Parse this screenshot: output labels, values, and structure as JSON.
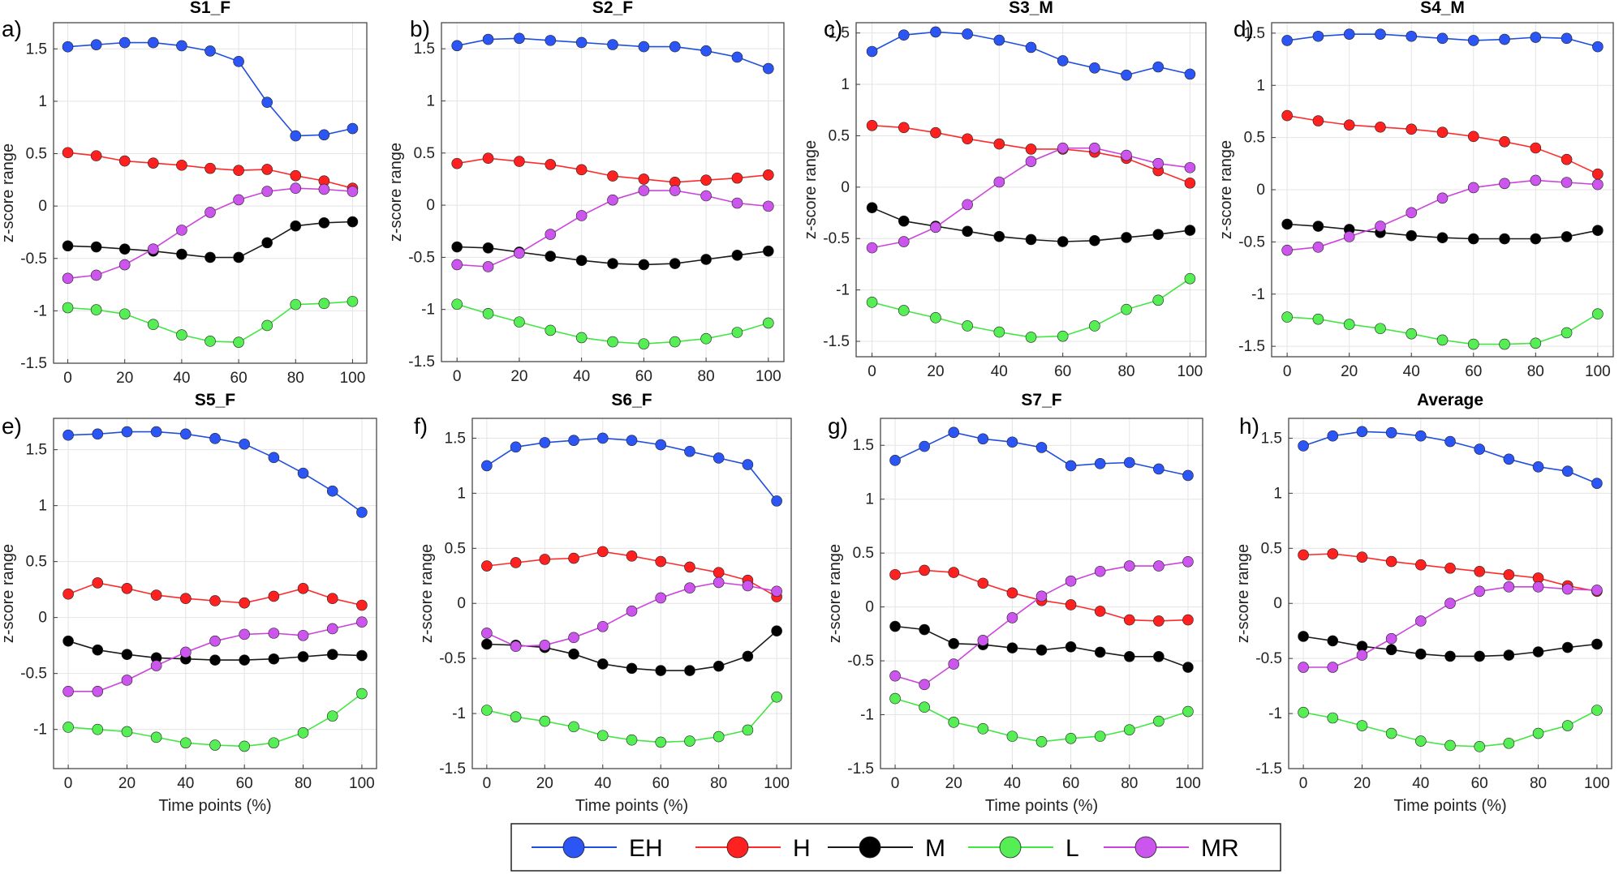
{
  "figure": {
    "legend": [
      {
        "key": "EH",
        "label": "EH",
        "color": "#1f4fe0",
        "marker": "#2b55f5"
      },
      {
        "key": "H",
        "label": "H",
        "color": "#ff2b2b",
        "marker": "#ff2020"
      },
      {
        "key": "M",
        "label": "M",
        "color": "#1a1a1a",
        "marker": "#000000"
      },
      {
        "key": "L",
        "label": "L",
        "color": "#44e644",
        "marker": "#55ee55"
      },
      {
        "key": "MR",
        "label": "MR",
        "color": "#cc44dd",
        "marker": "#cc55ee"
      }
    ]
  },
  "chart_data": [
    {
      "type": "line",
      "letter": "a)",
      "title": "S1_F",
      "xlabel": "",
      "ylabel": "z-score range",
      "x": [
        0,
        10,
        20,
        30,
        40,
        50,
        60,
        70,
        80,
        90,
        100
      ],
      "xlim": [
        -5,
        105
      ],
      "ylim": [
        -1.5,
        1.75
      ],
      "xticks": [
        "0",
        "20",
        "40",
        "60",
        "80",
        "100"
      ],
      "yticks": [
        "-1.5",
        "-1",
        "-0.5",
        "0",
        "0.5",
        "1",
        "1.5"
      ],
      "series": [
        {
          "name": "EH",
          "values": [
            1.52,
            1.54,
            1.56,
            1.56,
            1.53,
            1.48,
            1.38,
            0.99,
            0.67,
            0.68,
            0.74
          ]
        },
        {
          "name": "H",
          "values": [
            0.51,
            0.48,
            0.43,
            0.41,
            0.39,
            0.36,
            0.34,
            0.35,
            0.29,
            0.24,
            0.17
          ]
        },
        {
          "name": "M",
          "values": [
            -0.38,
            -0.39,
            -0.41,
            -0.43,
            -0.46,
            -0.49,
            -0.49,
            -0.35,
            -0.19,
            -0.16,
            -0.15
          ]
        },
        {
          "name": "L",
          "values": [
            -0.97,
            -0.99,
            -1.03,
            -1.13,
            -1.23,
            -1.29,
            -1.3,
            -1.14,
            -0.94,
            -0.93,
            -0.91
          ]
        },
        {
          "name": "MR",
          "values": [
            -0.69,
            -0.66,
            -0.56,
            -0.41,
            -0.23,
            -0.06,
            0.06,
            0.14,
            0.17,
            0.16,
            0.14
          ]
        }
      ]
    },
    {
      "type": "line",
      "letter": "b)",
      "title": "S2_F",
      "xlabel": "",
      "ylabel": "z-score range",
      "x": [
        0,
        10,
        20,
        30,
        40,
        50,
        60,
        70,
        80,
        90,
        100
      ],
      "xlim": [
        -5,
        105
      ],
      "ylim": [
        -1.5,
        1.75
      ],
      "xticks": [
        "0",
        "20",
        "40",
        "60",
        "80",
        "100"
      ],
      "yticks": [
        "-1.5",
        "-1",
        "-0.5",
        "0",
        "0.5",
        "1",
        "1.5"
      ],
      "series": [
        {
          "name": "EH",
          "values": [
            1.53,
            1.59,
            1.6,
            1.58,
            1.56,
            1.54,
            1.52,
            1.52,
            1.48,
            1.42,
            1.31
          ]
        },
        {
          "name": "H",
          "values": [
            0.4,
            0.45,
            0.42,
            0.39,
            0.34,
            0.28,
            0.25,
            0.22,
            0.24,
            0.26,
            0.29
          ]
        },
        {
          "name": "M",
          "values": [
            -0.4,
            -0.41,
            -0.45,
            -0.49,
            -0.53,
            -0.56,
            -0.57,
            -0.56,
            -0.52,
            -0.48,
            -0.44
          ]
        },
        {
          "name": "L",
          "values": [
            -0.95,
            -1.04,
            -1.12,
            -1.2,
            -1.27,
            -1.31,
            -1.33,
            -1.31,
            -1.28,
            -1.22,
            -1.13
          ]
        },
        {
          "name": "MR",
          "values": [
            -0.57,
            -0.59,
            -0.46,
            -0.28,
            -0.1,
            0.05,
            0.14,
            0.14,
            0.09,
            0.02,
            -0.01
          ]
        }
      ]
    },
    {
      "type": "line",
      "letter": "c)",
      "title": "S3_M",
      "xlabel": "",
      "ylabel": "z-score range",
      "x": [
        0,
        10,
        20,
        30,
        40,
        50,
        60,
        70,
        80,
        90,
        100
      ],
      "xlim": [
        -5,
        105
      ],
      "ylim": [
        -1.65,
        1.6
      ],
      "xticks": [
        "0",
        "20",
        "40",
        "60",
        "80",
        "100"
      ],
      "yticks": [
        "-1.5",
        "-1",
        "-0.5",
        "0",
        "0.5",
        "1",
        "1.5"
      ],
      "series": [
        {
          "name": "EH",
          "values": [
            1.32,
            1.48,
            1.51,
            1.49,
            1.43,
            1.36,
            1.23,
            1.16,
            1.09,
            1.17,
            1.1
          ]
        },
        {
          "name": "H",
          "values": [
            0.6,
            0.58,
            0.53,
            0.47,
            0.42,
            0.37,
            0.37,
            0.34,
            0.28,
            0.16,
            0.04
          ]
        },
        {
          "name": "M",
          "values": [
            -0.2,
            -0.33,
            -0.38,
            -0.43,
            -0.48,
            -0.51,
            -0.53,
            -0.52,
            -0.49,
            -0.46,
            -0.42
          ]
        },
        {
          "name": "L",
          "values": [
            -1.12,
            -1.2,
            -1.27,
            -1.35,
            -1.41,
            -1.46,
            -1.45,
            -1.35,
            -1.19,
            -1.1,
            -0.89
          ]
        },
        {
          "name": "MR",
          "values": [
            -0.59,
            -0.53,
            -0.39,
            -0.17,
            0.05,
            0.25,
            0.38,
            0.38,
            0.31,
            0.23,
            0.19
          ]
        }
      ]
    },
    {
      "type": "line",
      "letter": "d)",
      "title": "S4_M",
      "xlabel": "",
      "ylabel": "z-score range",
      "x": [
        0,
        10,
        20,
        30,
        40,
        50,
        60,
        70,
        80,
        90,
        100
      ],
      "xlim": [
        -5,
        105
      ],
      "ylim": [
        -1.6,
        1.6
      ],
      "xticks": [
        "0",
        "20",
        "40",
        "60",
        "80",
        "100"
      ],
      "yticks": [
        "-1.5",
        "-1",
        "-0.5",
        "0",
        "0.5",
        "1",
        "1.5"
      ],
      "series": [
        {
          "name": "EH",
          "values": [
            1.43,
            1.47,
            1.49,
            1.49,
            1.47,
            1.45,
            1.43,
            1.44,
            1.46,
            1.45,
            1.37
          ]
        },
        {
          "name": "H",
          "values": [
            0.71,
            0.66,
            0.62,
            0.6,
            0.58,
            0.55,
            0.51,
            0.46,
            0.4,
            0.29,
            0.15
          ]
        },
        {
          "name": "M",
          "values": [
            -0.33,
            -0.35,
            -0.38,
            -0.41,
            -0.44,
            -0.46,
            -0.47,
            -0.47,
            -0.47,
            -0.45,
            -0.39
          ]
        },
        {
          "name": "L",
          "values": [
            -1.22,
            -1.24,
            -1.29,
            -1.33,
            -1.38,
            -1.44,
            -1.48,
            -1.48,
            -1.47,
            -1.37,
            -1.19
          ]
        },
        {
          "name": "MR",
          "values": [
            -0.58,
            -0.55,
            -0.45,
            -0.35,
            -0.22,
            -0.08,
            0.02,
            0.06,
            0.09,
            0.07,
            0.05
          ]
        }
      ]
    },
    {
      "type": "line",
      "letter": "e)",
      "title": "S5_F",
      "xlabel": "Time points (%)",
      "ylabel": "z-score range",
      "x": [
        0,
        10,
        20,
        30,
        40,
        50,
        60,
        70,
        80,
        90,
        100
      ],
      "xlim": [
        -5,
        105
      ],
      "ylim": [
        -1.35,
        1.78
      ],
      "xticks": [
        "0",
        "20",
        "40",
        "60",
        "80",
        "100"
      ],
      "yticks": [
        "-1",
        "-0.5",
        "0",
        "0.5",
        "1",
        "1.5"
      ],
      "series": [
        {
          "name": "EH",
          "values": [
            1.63,
            1.64,
            1.66,
            1.66,
            1.64,
            1.6,
            1.55,
            1.43,
            1.29,
            1.13,
            0.94
          ]
        },
        {
          "name": "H",
          "values": [
            0.21,
            0.31,
            0.26,
            0.2,
            0.17,
            0.15,
            0.13,
            0.19,
            0.26,
            0.17,
            0.11
          ]
        },
        {
          "name": "M",
          "values": [
            -0.21,
            -0.29,
            -0.33,
            -0.36,
            -0.37,
            -0.38,
            -0.38,
            -0.37,
            -0.35,
            -0.33,
            -0.34
          ]
        },
        {
          "name": "L",
          "values": [
            -0.98,
            -1.0,
            -1.02,
            -1.07,
            -1.12,
            -1.14,
            -1.15,
            -1.12,
            -1.03,
            -0.88,
            -0.68
          ]
        },
        {
          "name": "MR",
          "values": [
            -0.66,
            -0.66,
            -0.56,
            -0.43,
            -0.31,
            -0.21,
            -0.15,
            -0.14,
            -0.16,
            -0.1,
            -0.04
          ]
        }
      ]
    },
    {
      "type": "line",
      "letter": "f)",
      "title": "S6_F",
      "xlabel": "Time points (%)",
      "ylabel": "z-score range",
      "x": [
        0,
        10,
        20,
        30,
        40,
        50,
        60,
        70,
        80,
        90,
        100
      ],
      "xlim": [
        -5,
        105
      ],
      "ylim": [
        -1.5,
        1.68
      ],
      "xticks": [
        "0",
        "20",
        "40",
        "60",
        "80",
        "100"
      ],
      "yticks": [
        "-1.5",
        "-1",
        "-0.5",
        "0",
        "0.5",
        "1",
        "1.5"
      ],
      "series": [
        {
          "name": "EH",
          "values": [
            1.25,
            1.42,
            1.46,
            1.48,
            1.5,
            1.48,
            1.44,
            1.38,
            1.32,
            1.26,
            0.93
          ]
        },
        {
          "name": "H",
          "values": [
            0.34,
            0.37,
            0.4,
            0.41,
            0.47,
            0.43,
            0.38,
            0.33,
            0.28,
            0.21,
            0.06
          ]
        },
        {
          "name": "M",
          "values": [
            -0.37,
            -0.38,
            -0.4,
            -0.46,
            -0.55,
            -0.59,
            -0.61,
            -0.61,
            -0.57,
            -0.48,
            -0.25
          ]
        },
        {
          "name": "L",
          "values": [
            -0.97,
            -1.03,
            -1.07,
            -1.12,
            -1.2,
            -1.24,
            -1.26,
            -1.25,
            -1.21,
            -1.15,
            -0.85
          ]
        },
        {
          "name": "MR",
          "values": [
            -0.27,
            -0.39,
            -0.38,
            -0.31,
            -0.21,
            -0.07,
            0.05,
            0.14,
            0.19,
            0.16,
            0.11
          ]
        }
      ]
    },
    {
      "type": "line",
      "letter": "g)",
      "title": "S7_F",
      "xlabel": "Time points (%)",
      "ylabel": "z-score range",
      "x": [
        0,
        10,
        20,
        30,
        40,
        50,
        60,
        70,
        80,
        90,
        100
      ],
      "xlim": [
        -5,
        105
      ],
      "ylim": [
        -1.5,
        1.75
      ],
      "xticks": [
        "0",
        "20",
        "40",
        "60",
        "80",
        "100"
      ],
      "yticks": [
        "-1.5",
        "-1",
        "-0.5",
        "0",
        "0.5",
        "1",
        "1.5"
      ],
      "series": [
        {
          "name": "EH",
          "values": [
            1.36,
            1.49,
            1.62,
            1.56,
            1.53,
            1.48,
            1.31,
            1.33,
            1.34,
            1.28,
            1.22
          ]
        },
        {
          "name": "H",
          "values": [
            0.3,
            0.34,
            0.32,
            0.22,
            0.13,
            0.06,
            0.02,
            -0.04,
            -0.12,
            -0.13,
            -0.12
          ]
        },
        {
          "name": "M",
          "values": [
            -0.18,
            -0.21,
            -0.34,
            -0.35,
            -0.38,
            -0.4,
            -0.37,
            -0.42,
            -0.46,
            -0.46,
            -0.56
          ]
        },
        {
          "name": "L",
          "values": [
            -0.85,
            -0.93,
            -1.07,
            -1.13,
            -1.2,
            -1.25,
            -1.22,
            -1.2,
            -1.14,
            -1.06,
            -0.97
          ]
        },
        {
          "name": "MR",
          "values": [
            -0.64,
            -0.72,
            -0.53,
            -0.31,
            -0.1,
            0.1,
            0.24,
            0.33,
            0.38,
            0.38,
            0.42
          ]
        }
      ]
    },
    {
      "type": "line",
      "letter": "h)",
      "title": "Average",
      "xlabel": "Time points (%)",
      "ylabel": "z-score range",
      "x": [
        0,
        10,
        20,
        30,
        40,
        50,
        60,
        70,
        80,
        90,
        100
      ],
      "xlim": [
        -5,
        105
      ],
      "ylim": [
        -1.5,
        1.68
      ],
      "xticks": [
        "0",
        "20",
        "40",
        "60",
        "80",
        "100"
      ],
      "yticks": [
        "-1.5",
        "-1",
        "-0.5",
        "0",
        "0.5",
        "1",
        "1.5"
      ],
      "series": [
        {
          "name": "EH",
          "values": [
            1.43,
            1.52,
            1.56,
            1.55,
            1.52,
            1.47,
            1.4,
            1.31,
            1.24,
            1.2,
            1.09
          ]
        },
        {
          "name": "H",
          "values": [
            0.44,
            0.45,
            0.42,
            0.38,
            0.35,
            0.32,
            0.29,
            0.26,
            0.23,
            0.16,
            0.11
          ]
        },
        {
          "name": "M",
          "values": [
            -0.3,
            -0.34,
            -0.39,
            -0.42,
            -0.46,
            -0.48,
            -0.48,
            -0.47,
            -0.44,
            -0.4,
            -0.37
          ]
        },
        {
          "name": "L",
          "values": [
            -0.99,
            -1.04,
            -1.11,
            -1.18,
            -1.25,
            -1.29,
            -1.3,
            -1.27,
            -1.18,
            -1.11,
            -0.97
          ]
        },
        {
          "name": "MR",
          "values": [
            -0.58,
            -0.58,
            -0.47,
            -0.32,
            -0.16,
            0.0,
            0.11,
            0.15,
            0.15,
            0.13,
            0.12
          ]
        }
      ]
    }
  ]
}
